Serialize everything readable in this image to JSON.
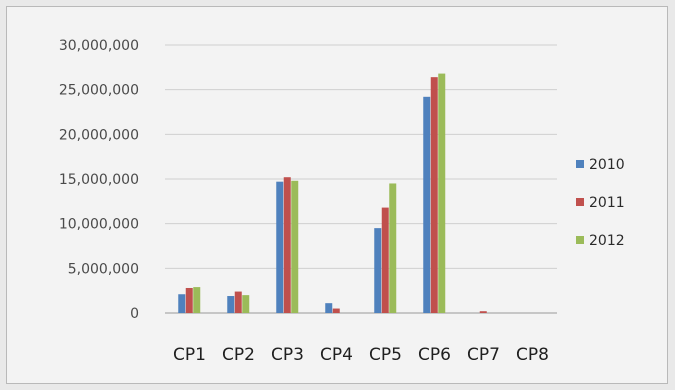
{
  "chart_data": {
    "type": "bar",
    "categories": [
      "CP1",
      "CP2",
      "CP3",
      "CP4",
      "CP5",
      "CP6",
      "CP7",
      "CP8"
    ],
    "series": [
      {
        "name": "2010",
        "values": [
          2100000,
          1900000,
          14700000,
          1100000,
          9500000,
          24200000,
          0,
          0
        ]
      },
      {
        "name": "2011",
        "values": [
          2800000,
          2400000,
          15200000,
          500000,
          11800000,
          26400000,
          200000,
          0
        ]
      },
      {
        "name": "2012",
        "values": [
          2900000,
          2000000,
          14800000,
          0,
          14500000,
          26800000,
          0,
          0
        ]
      }
    ],
    "colors": [
      "#4f81bd",
      "#c0504d",
      "#9bbb59"
    ],
    "yticks": [
      "0",
      "5,000,000",
      "10,000,000",
      "15,000,000",
      "20,000,000",
      "25,000,000",
      "30,000,000"
    ],
    "ylim": [
      0,
      30000000
    ],
    "title": "",
    "xlabel": "",
    "ylabel": "",
    "grid": true,
    "legend_position": "right"
  }
}
